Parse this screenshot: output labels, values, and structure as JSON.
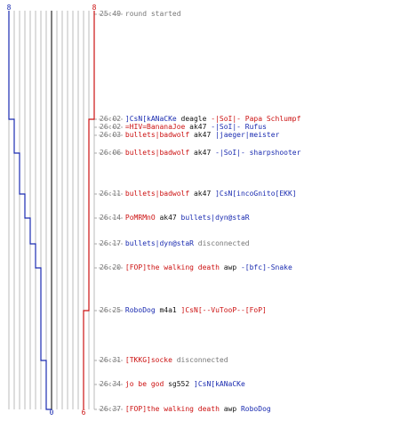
{
  "score_axis": {
    "team_blue_start": "8",
    "team_red_start": "8",
    "team_blue_end": "0",
    "team_red_end": "6"
  },
  "colors": {
    "blue_team": "#1a2bb0",
    "red_team": "#cc1111",
    "timestamp": "#777777",
    "grid": "#bbbbbb",
    "dash": "#aaaaaa",
    "center_line": "#555555"
  },
  "chart_data": {
    "type": "line",
    "x": [
      "25:49",
      "26:02",
      "26:02",
      "26:03",
      "26:06",
      "26:11",
      "26:14",
      "26:17",
      "26:20",
      "26:25",
      "26:31",
      "26:34",
      "26:37"
    ],
    "series": [
      {
        "values": [
          8,
          7,
          7,
          7,
          6,
          5,
          4,
          3,
          2,
          2,
          1,
          1,
          0
        ]
      },
      {
        "values": [
          8,
          7,
          7,
          7,
          7,
          7,
          7,
          7,
          7,
          6,
          6,
          6,
          6
        ]
      }
    ],
    "xlabel": "",
    "ylabel": "",
    "ylim": [
      0,
      8
    ],
    "grid": true
  },
  "events": [
    {
      "time": "25:49",
      "parts": [
        {
          "text": "round started",
          "color": "gray"
        }
      ]
    },
    {
      "time": "26:02",
      "parts": [
        {
          "text": "]CsN[kANaCKe",
          "color": "blue"
        },
        {
          "text": " deagle ",
          "color": "blk"
        },
        {
          "text": "-|SoI|- Papa Schlumpf",
          "color": "red"
        }
      ]
    },
    {
      "time": "26:02",
      "parts": [
        {
          "text": "=HIV=BananaJoe",
          "color": "red"
        },
        {
          "text": " ak47 ",
          "color": "blk"
        },
        {
          "text": "-|SoI|- Rufus",
          "color": "blue"
        }
      ]
    },
    {
      "time": "26:03",
      "parts": [
        {
          "text": "bullets|badwolf",
          "color": "red"
        },
        {
          "text": " ak47 ",
          "color": "blk"
        },
        {
          "text": "|jaeger|meister",
          "color": "blue"
        }
      ]
    },
    {
      "time": "26:06",
      "parts": [
        {
          "text": "bullets|badwolf",
          "color": "red"
        },
        {
          "text": " ak47 ",
          "color": "blk"
        },
        {
          "text": "-|SoI|- sharpshooter",
          "color": "blue"
        }
      ]
    },
    {
      "time": "26:11",
      "parts": [
        {
          "text": "bullets|badwolf",
          "color": "red"
        },
        {
          "text": " ak47 ",
          "color": "blk"
        },
        {
          "text": "]CsN[incoGnito[EKK]",
          "color": "blue"
        }
      ]
    },
    {
      "time": "26:14",
      "parts": [
        {
          "text": "PoMRMnO",
          "color": "red"
        },
        {
          "text": " ak47 ",
          "color": "blk"
        },
        {
          "text": "bullets|dyn@staR",
          "color": "blue"
        }
      ]
    },
    {
      "time": "26:17",
      "parts": [
        {
          "text": "bullets|dyn@staR",
          "color": "blue"
        },
        {
          "text": " disconnected",
          "color": "gray"
        }
      ]
    },
    {
      "time": "26:20",
      "parts": [
        {
          "text": "[FOP]the walking death",
          "color": "red"
        },
        {
          "text": " awp ",
          "color": "blk"
        },
        {
          "text": "-[bfc]-Snake",
          "color": "blue"
        }
      ]
    },
    {
      "time": "26:25",
      "parts": [
        {
          "text": "RoboDog",
          "color": "blue"
        },
        {
          "text": " m4a1 ",
          "color": "blk"
        },
        {
          "text": "]CsN[--VuTooP--[FoP]",
          "color": "red"
        }
      ]
    },
    {
      "time": "26:31",
      "parts": [
        {
          "text": "[TKKG]socke",
          "color": "red"
        },
        {
          "text": " disconnected",
          "color": "gray"
        }
      ]
    },
    {
      "time": "26:34",
      "parts": [
        {
          "text": "jo be god",
          "color": "red"
        },
        {
          "text": " sg552 ",
          "color": "blk"
        },
        {
          "text": "]CsN[kANaCKe",
          "color": "blue"
        }
      ]
    },
    {
      "time": "26:37",
      "parts": [
        {
          "text": "[FOP]the walking death",
          "color": "red"
        },
        {
          "text": " awp ",
          "color": "blk"
        },
        {
          "text": "RoboDog",
          "color": "blue"
        }
      ]
    }
  ]
}
